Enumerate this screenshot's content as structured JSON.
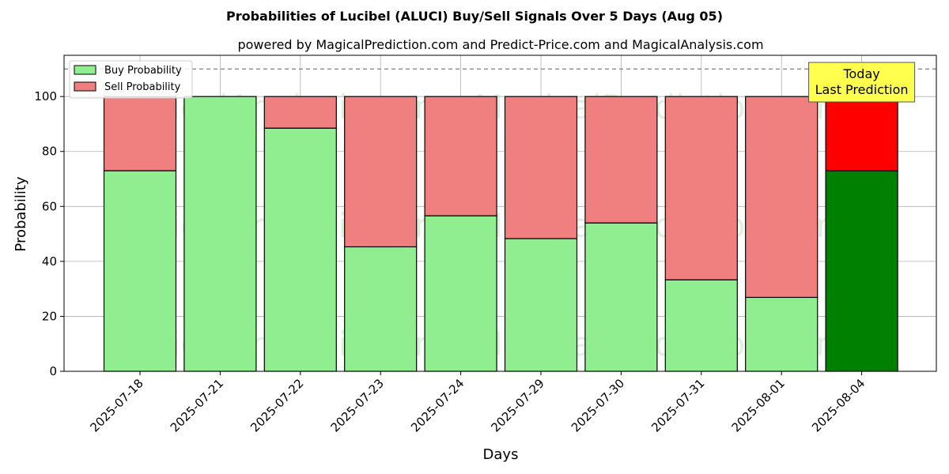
{
  "chart_data": {
    "type": "bar",
    "stacked": true,
    "title": "Probabilities of Lucibel (ALUCI) Buy/Sell Signals Over 5 Days (Aug 05)",
    "subtitle": "powered by MagicalPrediction.com and Predict-Price.com and MagicalAnalysis.com",
    "xlabel": "Days",
    "ylabel": "Probability",
    "ylim": [
      0,
      115
    ],
    "yticks": [
      0,
      20,
      40,
      60,
      80,
      100
    ],
    "grid": true,
    "legend_position": "top-left",
    "reference_line": 110,
    "categories": [
      "2025-07-18",
      "2025-07-21",
      "2025-07-22",
      "2025-07-23",
      "2025-07-24",
      "2025-07-29",
      "2025-07-30",
      "2025-07-31",
      "2025-08-01",
      "2025-08-04"
    ],
    "series": [
      {
        "name": "Buy Probability",
        "color": "#90ee90",
        "highlight_color": "#008000",
        "values": [
          73,
          100,
          88.5,
          45.3,
          56.6,
          48.3,
          54,
          33.3,
          26.9,
          73
        ]
      },
      {
        "name": "Sell Probability",
        "color": "#f08080",
        "highlight_color": "#ff0000",
        "values": [
          27,
          0,
          11.5,
          54.7,
          43.4,
          51.7,
          46,
          66.7,
          73.1,
          27
        ]
      }
    ],
    "highlight_index": 9,
    "annotation": {
      "lines": [
        "Today",
        "Last Prediction"
      ],
      "color": "#ffff4d"
    },
    "watermarks": [
      "MagicalAnalysis.com",
      "MagicalPrediction.com"
    ]
  }
}
